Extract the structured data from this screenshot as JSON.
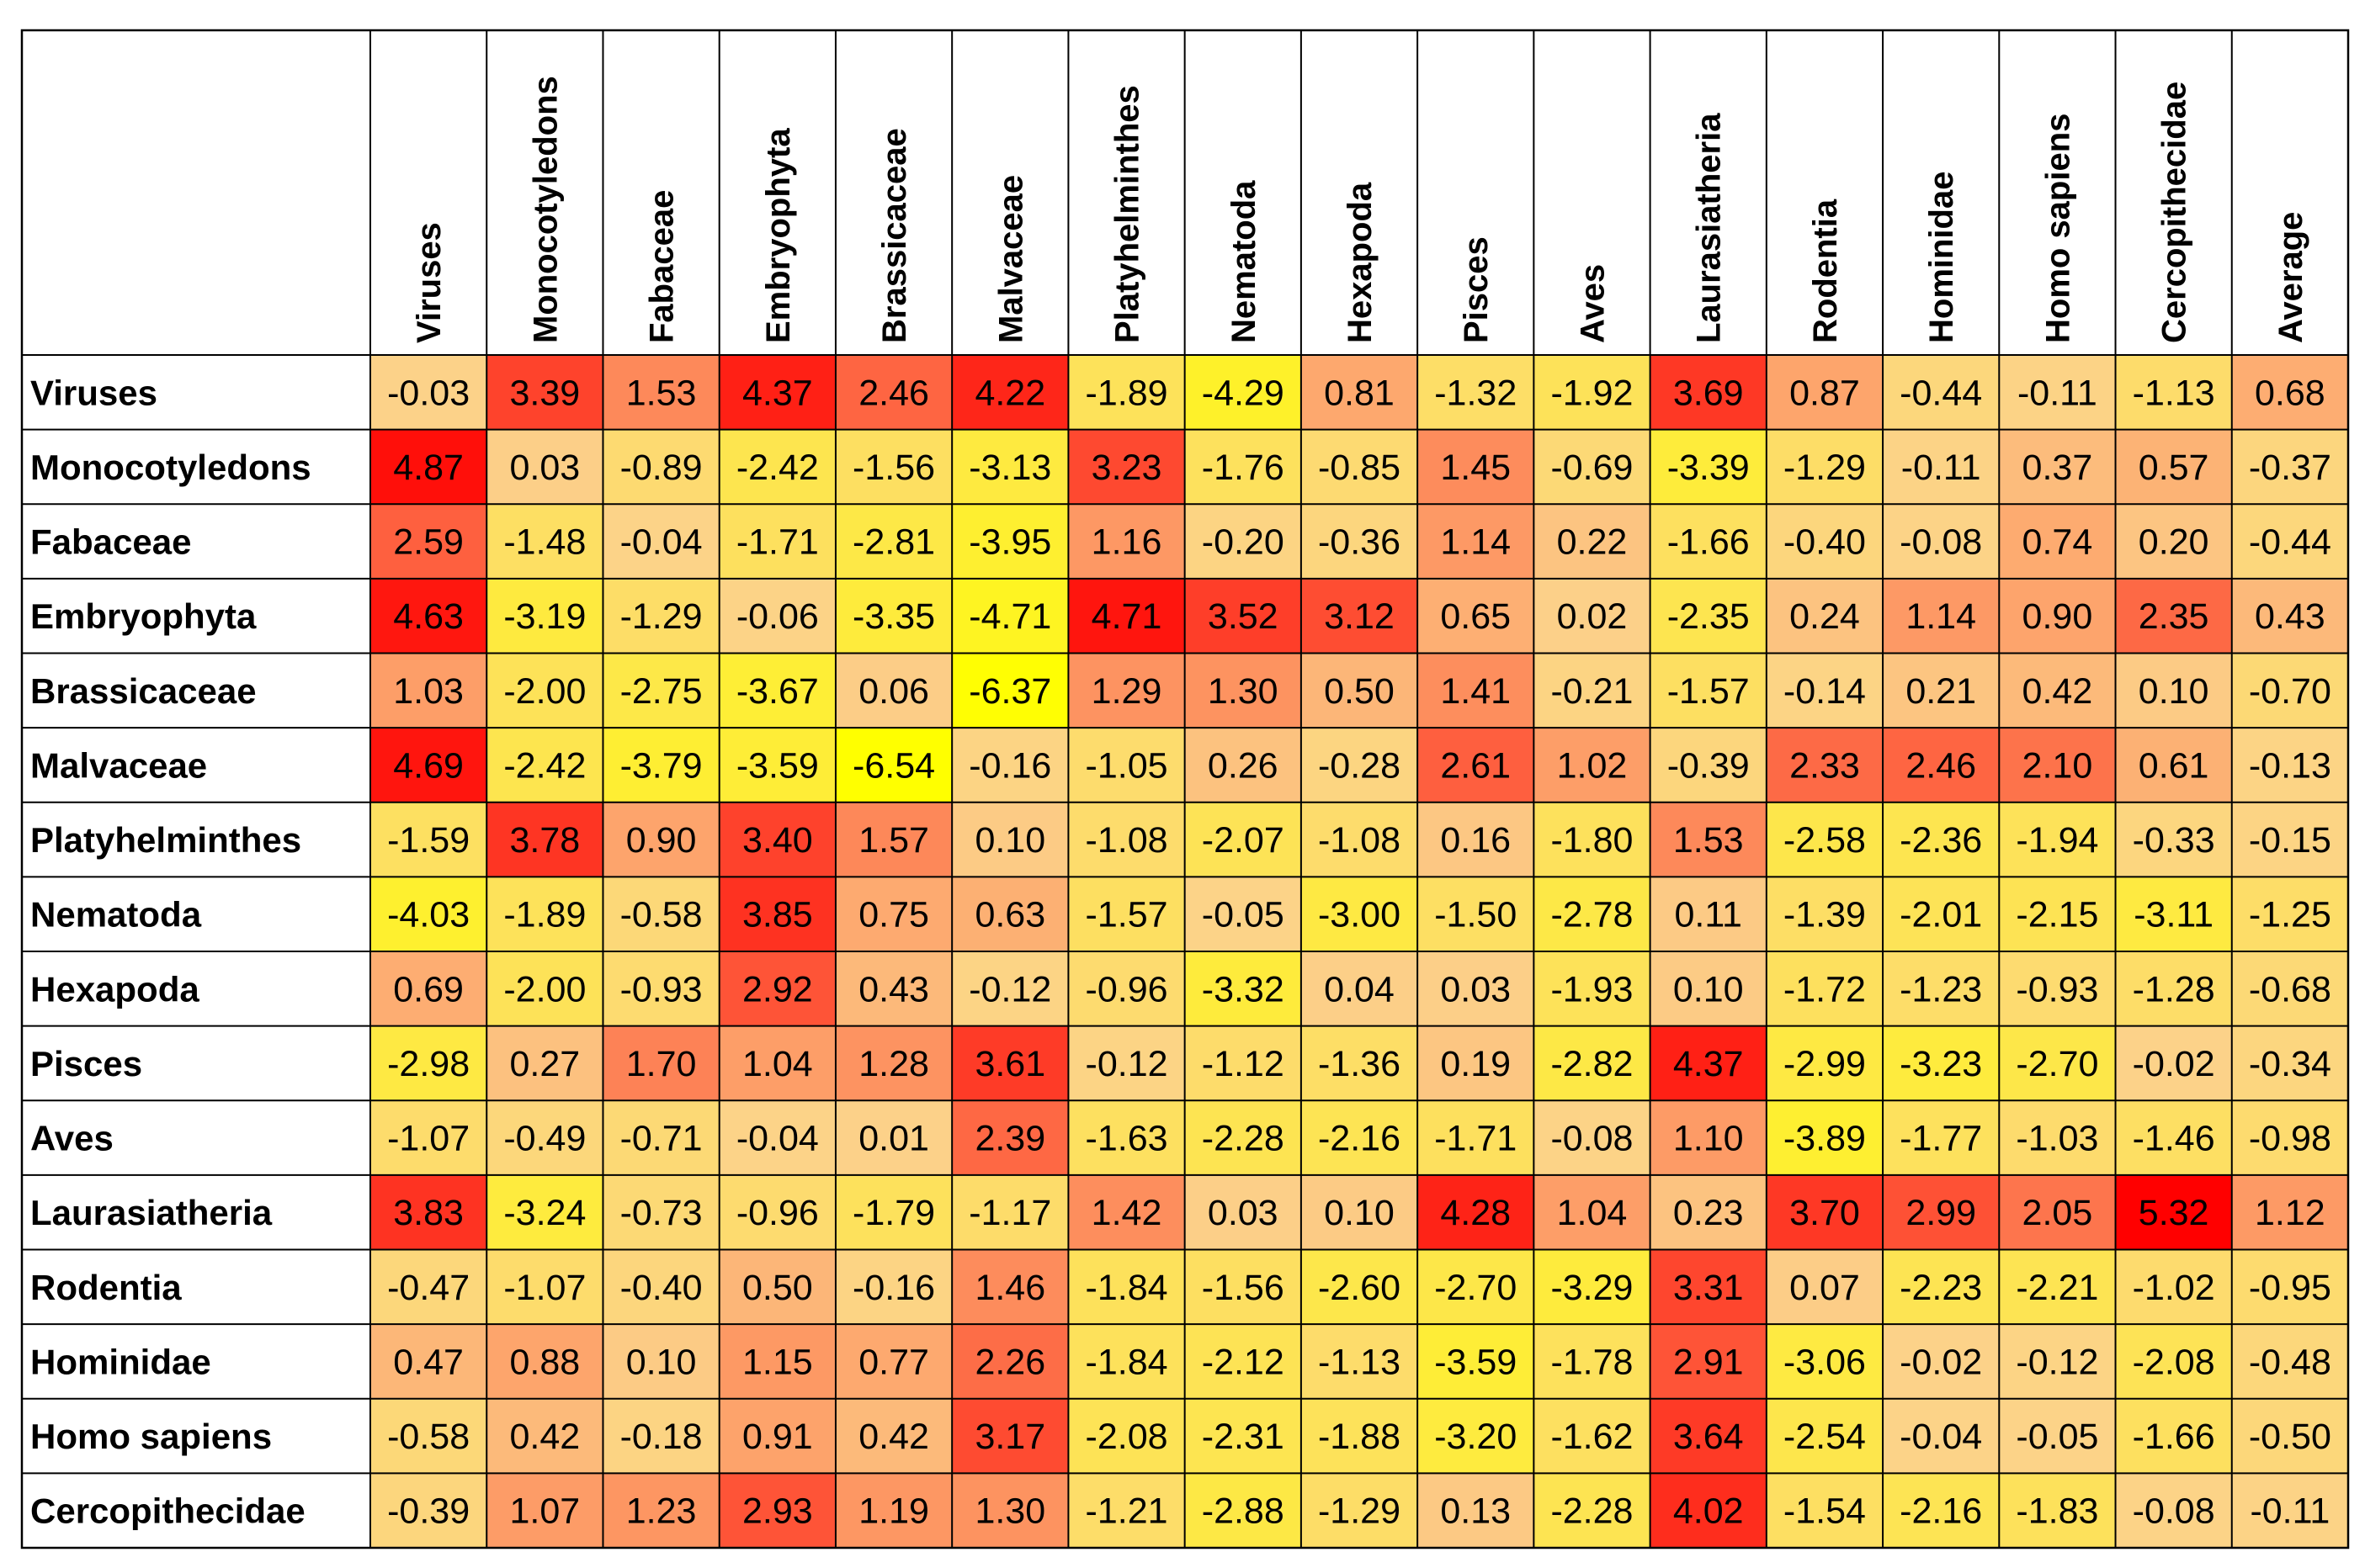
{
  "chart_data": {
    "type": "heatmap",
    "title": "",
    "color_scale": {
      "low": "#ffff00",
      "mid": "#fcd28a",
      "high": "#ff0000"
    },
    "grid_color": "#000000",
    "x_labels": [
      "Viruses",
      "Monocotyledons",
      "Fabaceae",
      "Embryophyta",
      "Brassicaceae",
      "Malvaceae",
      "Platyhelminthes",
      "Nematoda",
      "Hexapoda",
      "Pisces",
      "Aves",
      "Laurasiatheria",
      "Rodentia",
      "Hominidae",
      "Homo sapiens",
      "Cercopithecidae",
      "Average"
    ],
    "y_labels": [
      "Viruses",
      "Monocotyledons",
      "Fabaceae",
      "Embryophyta",
      "Brassicaceae",
      "Malvaceae",
      "Platyhelminthes",
      "Nematoda",
      "Hexapoda",
      "Pisces",
      "Aves",
      "Laurasiatheria",
      "Rodentia",
      "Hominidae",
      "Homo sapiens",
      "Cercopithecidae"
    ],
    "values": [
      [
        -0.03,
        3.39,
        1.53,
        4.37,
        2.46,
        4.22,
        -1.89,
        -4.29,
        0.81,
        -1.32,
        -1.92,
        3.69,
        0.87,
        -0.44,
        -0.11,
        -1.13,
        0.68
      ],
      [
        4.87,
        0.03,
        -0.89,
        -2.42,
        -1.56,
        -3.13,
        3.23,
        -1.76,
        -0.85,
        1.45,
        -0.69,
        -3.39,
        -1.29,
        -0.11,
        0.37,
        0.57,
        -0.37
      ],
      [
        2.59,
        -1.48,
        -0.04,
        -1.71,
        -2.81,
        -3.95,
        1.16,
        -0.2,
        -0.36,
        1.14,
        0.22,
        -1.66,
        -0.4,
        -0.08,
        0.74,
        0.2,
        -0.44
      ],
      [
        4.63,
        -3.19,
        -1.29,
        -0.06,
        -3.35,
        -4.71,
        4.71,
        3.52,
        3.12,
        0.65,
        0.02,
        -2.35,
        0.24,
        1.14,
        0.9,
        2.35,
        0.43
      ],
      [
        1.03,
        -2.0,
        -2.75,
        -3.67,
        0.06,
        -6.37,
        1.29,
        1.3,
        0.5,
        1.41,
        -0.21,
        -1.57,
        -0.14,
        0.21,
        0.42,
        0.1,
        -0.7
      ],
      [
        4.69,
        -2.42,
        -3.79,
        -3.59,
        -6.54,
        -0.16,
        -1.05,
        0.26,
        -0.28,
        2.61,
        1.02,
        -0.39,
        2.33,
        2.46,
        2.1,
        0.61,
        -0.13
      ],
      [
        -1.59,
        3.78,
        0.9,
        3.4,
        1.57,
        0.1,
        -1.08,
        -2.07,
        -1.08,
        0.16,
        -1.8,
        1.53,
        -2.58,
        -2.36,
        -1.94,
        -0.33,
        -0.15
      ],
      [
        -4.03,
        -1.89,
        -0.58,
        3.85,
        0.75,
        0.63,
        -1.57,
        -0.05,
        -3.0,
        -1.5,
        -2.78,
        0.11,
        -1.39,
        -2.01,
        -2.15,
        -3.11,
        -1.25
      ],
      [
        0.69,
        -2.0,
        -0.93,
        2.92,
        0.43,
        -0.12,
        -0.96,
        -3.32,
        0.04,
        0.03,
        -1.93,
        0.1,
        -1.72,
        -1.23,
        -0.93,
        -1.28,
        -0.68
      ],
      [
        -2.98,
        0.27,
        1.7,
        1.04,
        1.28,
        3.61,
        -0.12,
        -1.12,
        -1.36,
        0.19,
        -2.82,
        4.37,
        -2.99,
        -3.23,
        -2.7,
        -0.02,
        -0.34
      ],
      [
        -1.07,
        -0.49,
        -0.71,
        -0.04,
        0.01,
        2.39,
        -1.63,
        -2.28,
        -2.16,
        -1.71,
        -0.08,
        1.1,
        -3.89,
        -1.77,
        -1.03,
        -1.46,
        -0.98
      ],
      [
        3.83,
        -3.24,
        -0.73,
        -0.96,
        -1.79,
        -1.17,
        1.42,
        0.03,
        0.1,
        4.28,
        1.04,
        0.23,
        3.7,
        2.99,
        2.05,
        5.32,
        1.12
      ],
      [
        -0.47,
        -1.07,
        -0.4,
        0.5,
        -0.16,
        1.46,
        -1.84,
        -1.56,
        -2.6,
        -2.7,
        -3.29,
        3.31,
        0.07,
        -2.23,
        -2.21,
        -1.02,
        -0.95
      ],
      [
        0.47,
        0.88,
        0.1,
        1.15,
        0.77,
        2.26,
        -1.84,
        -2.12,
        -1.13,
        -3.59,
        -1.78,
        2.91,
        -3.06,
        -0.02,
        -0.12,
        -2.08,
        -0.48
      ],
      [
        -0.58,
        0.42,
        -0.18,
        0.91,
        0.42,
        3.17,
        -2.08,
        -2.31,
        -1.88,
        -3.2,
        -1.62,
        3.64,
        -2.54,
        -0.04,
        -0.05,
        -1.66,
        -0.5
      ],
      [
        -0.39,
        1.07,
        1.23,
        2.93,
        1.19,
        1.3,
        -1.21,
        -2.88,
        -1.29,
        0.13,
        -2.28,
        4.02,
        -1.54,
        -2.16,
        -1.83,
        -0.08,
        -0.11
      ]
    ]
  }
}
